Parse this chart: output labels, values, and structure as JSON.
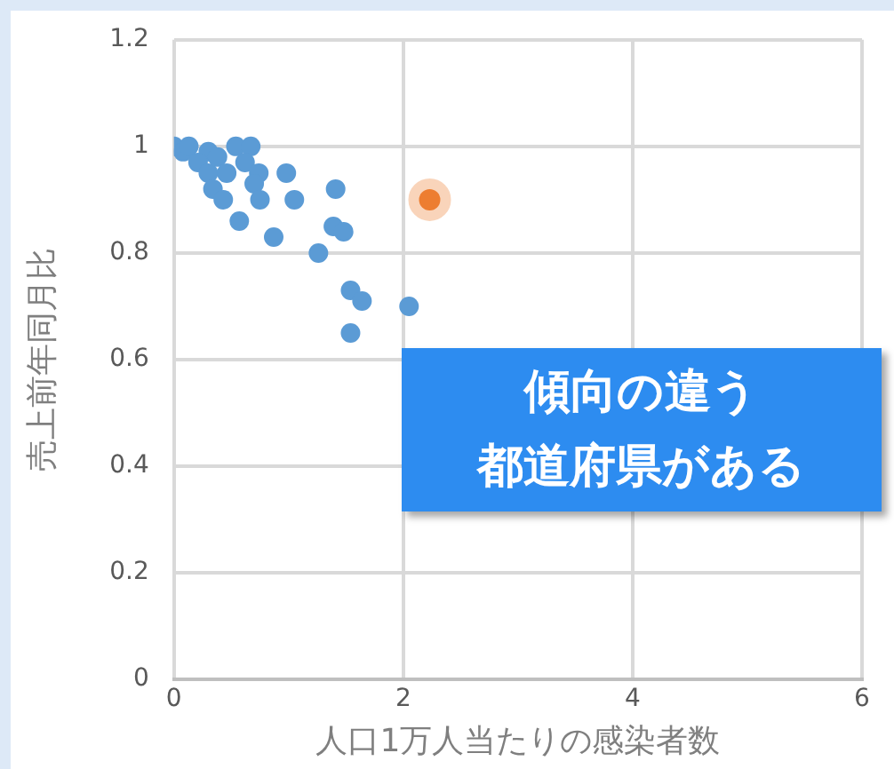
{
  "chart_data": {
    "type": "scatter",
    "xlabel": "人口1万人当たりの感染者数",
    "ylabel": "売上前年同月比",
    "xlim": [
      0,
      6
    ],
    "xticks": [
      0,
      2,
      4,
      6
    ],
    "ylim": [
      0,
      1.2
    ],
    "yticks": [
      0,
      0.2,
      0.4,
      0.6,
      0.8,
      1,
      1.2
    ],
    "grid": true,
    "marker": "circle",
    "series": [
      {
        "color": "#5b9bd5",
        "x": [
          0,
          0.08,
          0.13,
          0.3,
          0.21,
          0.3,
          0.34,
          0.38,
          0.43,
          0.46,
          0.57,
          0.54,
          0.67,
          0.62,
          0.74,
          0.7,
          0.75,
          0.98,
          1.05,
          0.87,
          1.41,
          1.39,
          1.48,
          1.26,
          1.54,
          1.64,
          1.54,
          2.05
        ],
        "values": [
          1,
          0.99,
          1,
          0.99,
          0.97,
          0.95,
          0.92,
          0.98,
          0.9,
          0.95,
          0.86,
          1,
          1,
          0.97,
          0.95,
          0.93,
          0.9,
          0.95,
          0.9,
          0.83,
          0.92,
          0.85,
          0.84,
          0.8,
          0.73,
          0.71,
          0.65,
          0.7
        ]
      },
      {
        "color": "#ed7d31",
        "x": [
          2.23
        ],
        "values": [
          0.9
        ]
      }
    ],
    "annotations": [
      "傾向の違う",
      "都道府県がある"
    ]
  }
}
